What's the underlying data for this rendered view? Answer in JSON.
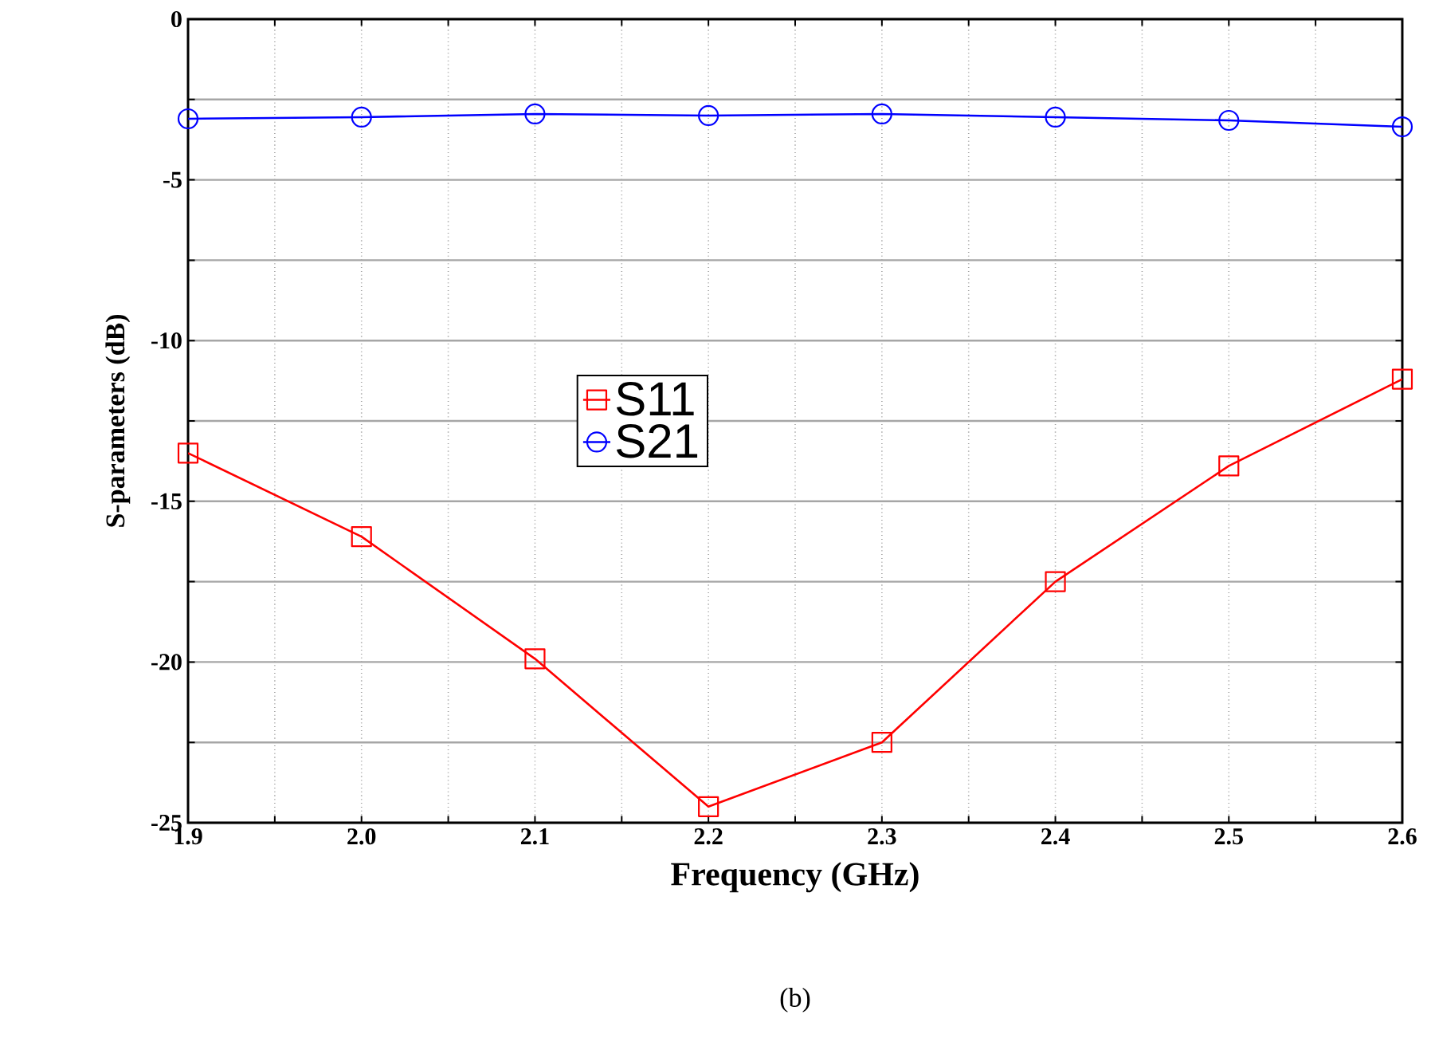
{
  "chart_data": {
    "type": "line",
    "xlabel": "Frequency (GHz)",
    "ylabel": "S-parameters (dB)",
    "x": [
      1.9,
      2.0,
      2.1,
      2.2,
      2.3,
      2.4,
      2.5,
      2.6
    ],
    "series": [
      {
        "name": "S11",
        "color": "#ff0000",
        "marker": "square",
        "values": [
          -13.5,
          -16.1,
          -19.9,
          -24.5,
          -22.5,
          -17.5,
          -13.9,
          -11.2
        ]
      },
      {
        "name": "S21",
        "color": "#0000ff",
        "marker": "circle",
        "values": [
          -3.1,
          -3.05,
          -2.95,
          -3.0,
          -2.95,
          -3.05,
          -3.15,
          -3.35
        ]
      }
    ],
    "xlim": [
      1.9,
      2.6
    ],
    "ylim": [
      -25,
      0
    ],
    "xticks": [
      1.9,
      {
        "value": 1.95,
        "label": null
      },
      {
        "value": 2.0,
        "label": "2.0"
      },
      {
        "value": 2.05,
        "label": null
      },
      2.1,
      {
        "value": 2.15,
        "label": null
      },
      2.2,
      {
        "value": 2.25,
        "label": null
      },
      2.3,
      {
        "value": 2.35,
        "label": null
      },
      2.4,
      {
        "value": 2.45,
        "label": null
      },
      2.5,
      {
        "value": 2.55,
        "label": null
      },
      2.6
    ],
    "yticks": [
      -25,
      {
        "value": -22.5,
        "label": null
      },
      -20,
      {
        "value": -17.5,
        "label": null
      },
      -15,
      {
        "value": -12.5,
        "label": null
      },
      -10,
      {
        "value": -7.5,
        "label": null
      },
      -5,
      {
        "value": -2.5,
        "label": null
      },
      0
    ],
    "grid": true,
    "legend": "center",
    "line_style": "solid",
    "annotations": [
      "(b)"
    ]
  }
}
